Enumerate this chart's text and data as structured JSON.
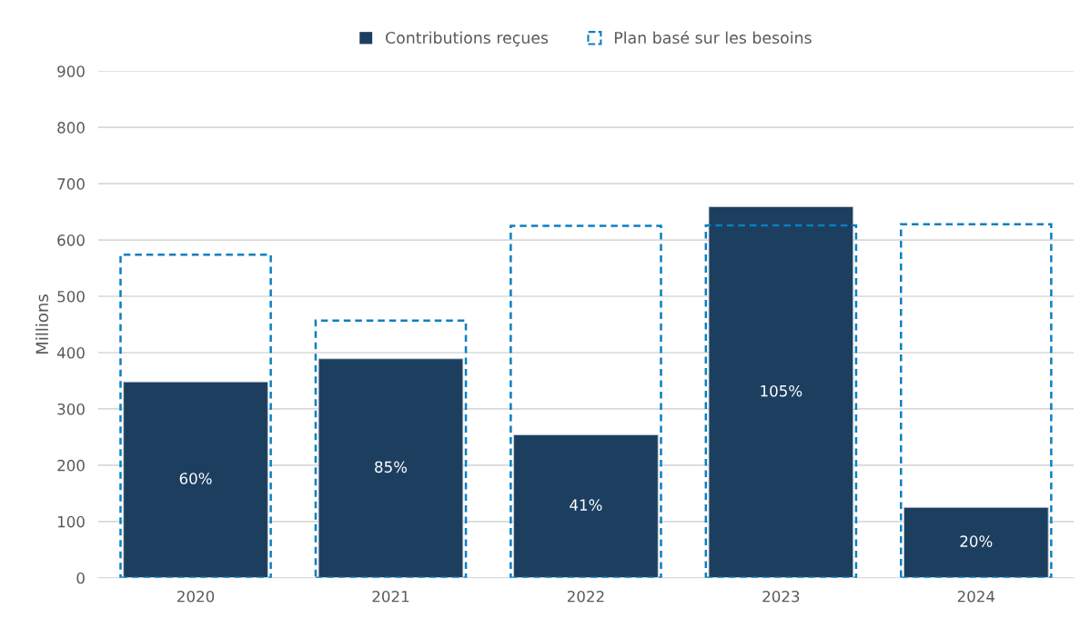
{
  "chart_data": {
    "type": "bar",
    "ylabel": "Millions",
    "categories": [
      "2020",
      "2021",
      "2022",
      "2023",
      "2024"
    ],
    "series": [
      {
        "name": "Contributions reçues",
        "color": "#1c3f60",
        "values": [
          348,
          389,
          254,
          659,
          125
        ]
      },
      {
        "name": "Plan basé sur les besoins",
        "color": "#0a7fc0",
        "values": [
          574,
          457,
          625,
          626,
          628
        ],
        "line_style": "dashed"
      }
    ],
    "ylim": [
      0,
      900
    ],
    "yticks": [
      0,
      100,
      200,
      300,
      400,
      500,
      600,
      700,
      800,
      900
    ],
    "annotations": [
      "60%",
      "85%",
      "41%",
      "105%",
      "20%"
    ],
    "grid": "y",
    "legend": "top"
  }
}
